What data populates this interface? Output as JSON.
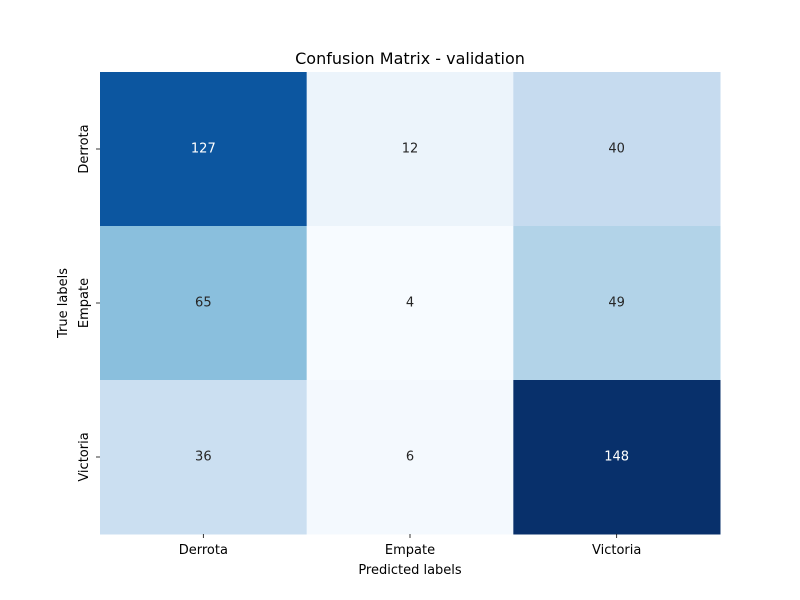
{
  "chart_data": {
    "type": "heatmap",
    "title": "Confusion Matrix - validation",
    "xlabel": "Predicted labels",
    "ylabel": "True labels",
    "x_categories": [
      "Derrota",
      "Empate",
      "Victoria"
    ],
    "y_categories": [
      "Derrota",
      "Empate",
      "Victoria"
    ],
    "values": [
      [
        127,
        12,
        40
      ],
      [
        65,
        4,
        49
      ],
      [
        36,
        6,
        148
      ]
    ],
    "colormap": "Blues",
    "colorbar": false
  }
}
